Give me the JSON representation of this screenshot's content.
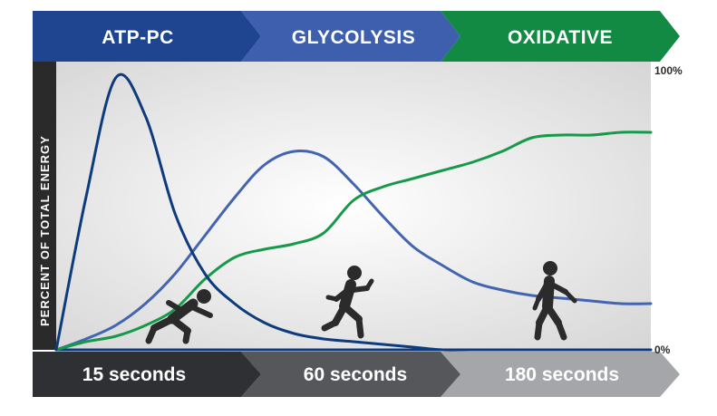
{
  "header": {
    "phases": [
      {
        "label": "ATP-PC",
        "color": "#1f4590"
      },
      {
        "label": "GLYCOLYSIS",
        "color": "#3d5fae"
      },
      {
        "label": "OXIDATIVE",
        "color": "#138a43"
      }
    ]
  },
  "footer": {
    "durations": [
      {
        "label": "15 seconds",
        "color": "#2f3033"
      },
      {
        "label": "60 seconds",
        "color": "#55575a"
      },
      {
        "label": "180 seconds",
        "color": "#a4a6a9"
      }
    ]
  },
  "chart_data": {
    "type": "line",
    "title": "",
    "ylabel": "PERCENT OF TOTAL ENERGY",
    "xlabel": "",
    "ylim": [
      0,
      100
    ],
    "y_ticks": [
      "100%",
      "0%"
    ],
    "x_phases": [
      "15 seconds",
      "60 seconds",
      "180 seconds"
    ],
    "x": [
      0,
      5,
      10,
      15,
      20,
      25,
      30,
      35,
      40,
      45,
      50,
      55,
      60,
      65,
      70,
      75,
      80,
      85,
      90,
      95,
      100
    ],
    "series": [
      {
        "id": "atp-pc",
        "color": "#0e3b7d",
        "values": [
          0,
          56,
          100,
          86,
          50,
          28,
          17,
          10,
          6,
          4,
          3,
          2,
          1,
          0,
          0,
          0,
          0,
          0,
          0,
          0,
          0
        ]
      },
      {
        "id": "glycolysis",
        "color": "#4364b0",
        "values": [
          0,
          4,
          9,
          17,
          28,
          42,
          56,
          68,
          73,
          71,
          61,
          49,
          38,
          31,
          25,
          22,
          20,
          19,
          18,
          17,
          17
        ]
      },
      {
        "id": "oxidative",
        "color": "#169a4a",
        "values": [
          0,
          3,
          5,
          9,
          15,
          26,
          34,
          37,
          39,
          43,
          55,
          60,
          63,
          66,
          69,
          73,
          78,
          79,
          79,
          80,
          80
        ]
      }
    ],
    "grid": false,
    "legend": "none",
    "figures": [
      "sprinter-icon",
      "runner-icon",
      "walker-icon"
    ]
  }
}
